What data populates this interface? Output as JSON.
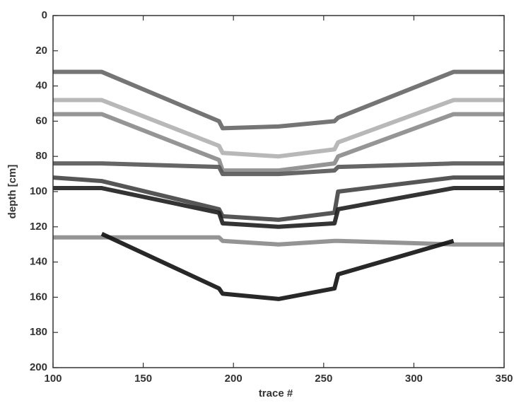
{
  "chart_data": {
    "type": "image",
    "xlabel": "trace #",
    "ylabel": "depth [cm]",
    "xlim": [
      100,
      350
    ],
    "ylim": [
      0,
      200
    ],
    "y_inverted": true,
    "xticks": [
      100,
      150,
      200,
      250,
      300,
      350
    ],
    "yticks": [
      0,
      20,
      40,
      60,
      80,
      100,
      120,
      140,
      160,
      180,
      200
    ],
    "x": [
      100,
      127,
      192,
      194,
      225,
      256,
      258,
      322,
      350
    ],
    "series": [
      {
        "color": "#666666",
        "values": [
          32,
          32,
          60,
          64,
          63,
          60,
          58,
          32,
          32
        ]
      },
      {
        "color": "#b0b0b0",
        "values": [
          48,
          48,
          74,
          78,
          80,
          76,
          72,
          48,
          48
        ]
      },
      {
        "color": "#8a8a8a",
        "values": [
          56,
          56,
          82,
          88,
          88,
          84,
          80,
          56,
          56
        ]
      },
      {
        "color": "#555555",
        "values": [
          84,
          84,
          86,
          90,
          90,
          88,
          86,
          84,
          84
        ]
      },
      {
        "color": "#444444",
        "values": [
          92,
          94,
          110,
          114,
          116,
          112,
          100,
          92,
          92
        ]
      },
      {
        "color": "#1e1e1e",
        "values": [
          98,
          98,
          112,
          118,
          120,
          118,
          110,
          98,
          98
        ]
      },
      {
        "color": "#888888",
        "values": [
          126,
          126,
          126,
          128,
          130,
          128,
          128,
          130,
          130
        ]
      },
      {
        "color": "#111111",
        "values": [
          null,
          124,
          155,
          158,
          161,
          155,
          147,
          128,
          null
        ]
      }
    ]
  }
}
